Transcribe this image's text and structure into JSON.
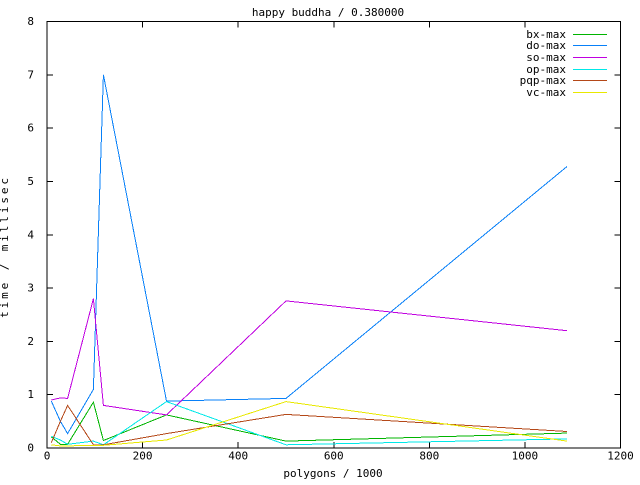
{
  "chart_data": {
    "type": "line",
    "title": "happy buddha / 0.380000",
    "xlabel": "polygons / 1000",
    "ylabel": "time / millisec",
    "xlim": [
      0,
      1200
    ],
    "ylim": [
      0,
      8
    ],
    "xticks": [
      0,
      200,
      400,
      600,
      800,
      1000,
      1200
    ],
    "yticks": [
      0,
      1,
      2,
      3,
      4,
      5,
      6,
      7,
      8
    ],
    "grid": false,
    "legend_position": "top-right-inside",
    "x": [
      9,
      28,
      43,
      97,
      118,
      250,
      500,
      1088
    ],
    "series": [
      {
        "name": "bx-max",
        "color": "#00b400",
        "values": [
          0.21,
          0.07,
          0.07,
          0.86,
          0.14,
          0.62,
          0.13,
          0.28
        ]
      },
      {
        "name": "do-max",
        "color": "#0880f8",
        "values": [
          0.88,
          0.5,
          0.27,
          1.1,
          7.0,
          0.88,
          0.93,
          5.28
        ]
      },
      {
        "name": "so-max",
        "color": "#c000e0",
        "values": [
          0.9,
          0.94,
          0.93,
          2.8,
          0.8,
          0.62,
          2.76,
          2.2
        ]
      },
      {
        "name": "op-max",
        "color": "#00e8e8",
        "values": [
          0.22,
          0.15,
          0.07,
          0.13,
          0.06,
          0.87,
          0.06,
          0.17
        ]
      },
      {
        "name": "pqp-max",
        "color": "#b44818",
        "values": [
          0.1,
          0.5,
          0.8,
          0.06,
          0.06,
          0.27,
          0.63,
          0.31
        ]
      },
      {
        "name": "vc-max",
        "color": "#e8e800",
        "values": [
          0.06,
          0.04,
          0.04,
          0.05,
          0.05,
          0.15,
          0.87,
          0.13
        ]
      }
    ],
    "axis_color": "#000000"
  }
}
